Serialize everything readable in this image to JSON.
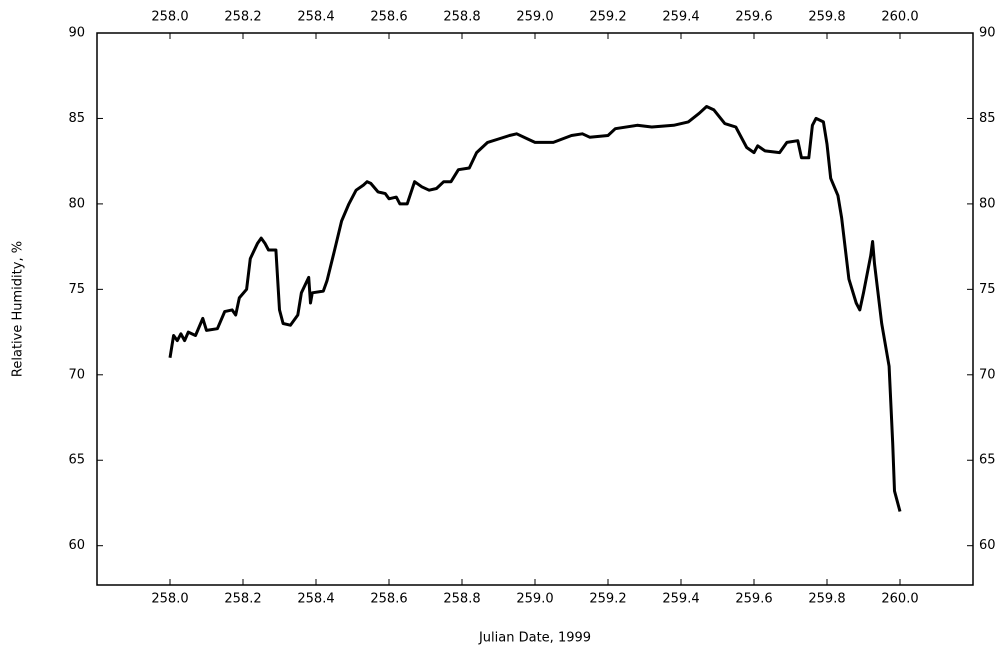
{
  "chart_data": {
    "type": "line",
    "x_label": "Julian Date, 1999",
    "y_label": "Relative Humidity, %",
    "color": "#000000",
    "xlim": [
      257.8,
      260.2
    ],
    "ylim": [
      57.7,
      90
    ],
    "xticks": [
      {
        "value": 258,
        "label": "258.0"
      },
      {
        "value": 258.2,
        "label": "258.2"
      },
      {
        "value": 258.4,
        "label": "258.4"
      },
      {
        "value": 258.6,
        "label": "258.6"
      },
      {
        "value": 258.8,
        "label": "258.8"
      },
      {
        "value": 259,
        "label": "259.0"
      },
      {
        "value": 259.2,
        "label": "259.2"
      },
      {
        "value": 259.4,
        "label": "259.4"
      },
      {
        "value": 259.6,
        "label": "259.6"
      },
      {
        "value": 259.8,
        "label": "259.8"
      },
      {
        "value": 260,
        "label": "260.0"
      }
    ],
    "yticks": [
      60,
      65,
      70,
      75,
      80,
      85,
      90
    ],
    "x": [
      258.0,
      258.01,
      258.02,
      258.03,
      258.04,
      258.05,
      258.07,
      258.09,
      258.1,
      258.13,
      258.15,
      258.17,
      258.18,
      258.19,
      258.21,
      258.22,
      258.24,
      258.25,
      258.26,
      258.27,
      258.29,
      258.3,
      258.31,
      258.33,
      258.35,
      258.36,
      258.38,
      258.385,
      258.39,
      258.42,
      258.43,
      258.45,
      258.47,
      258.49,
      258.51,
      258.53,
      258.54,
      258.55,
      258.57,
      258.59,
      258.6,
      258.62,
      258.63,
      258.65,
      258.67,
      258.69,
      258.71,
      258.73,
      258.75,
      258.77,
      258.79,
      258.82,
      258.84,
      258.87,
      258.9,
      258.93,
      258.95,
      258.98,
      259.0,
      259.05,
      259.1,
      259.13,
      259.15,
      259.2,
      259.22,
      259.28,
      259.32,
      259.38,
      259.42,
      259.45,
      259.47,
      259.49,
      259.52,
      259.55,
      259.58,
      259.6,
      259.61,
      259.63,
      259.67,
      259.69,
      259.72,
      259.73,
      259.75,
      259.76,
      259.77,
      259.79,
      259.8,
      259.81,
      259.83,
      259.84,
      259.86,
      259.88,
      259.89,
      259.9,
      259.92,
      259.925,
      259.93,
      259.95,
      259.97,
      259.98,
      259.985,
      260.0
    ],
    "values": [
      71.0,
      72.3,
      72.0,
      72.4,
      72.0,
      72.5,
      72.3,
      73.3,
      72.6,
      72.7,
      73.7,
      73.8,
      73.5,
      74.5,
      75.0,
      76.8,
      77.7,
      78.0,
      77.7,
      77.3,
      77.3,
      73.8,
      73.0,
      72.9,
      73.5,
      74.8,
      75.7,
      74.2,
      74.8,
      74.9,
      75.5,
      77.2,
      79.0,
      80.0,
      80.8,
      81.1,
      81.3,
      81.2,
      80.7,
      80.6,
      80.3,
      80.4,
      80.0,
      80.0,
      81.3,
      81.0,
      80.8,
      80.9,
      81.3,
      81.3,
      82.0,
      82.1,
      83.0,
      83.6,
      83.8,
      84.0,
      84.1,
      83.8,
      83.6,
      83.6,
      84.0,
      84.1,
      83.9,
      84.0,
      84.4,
      84.6,
      84.5,
      84.6,
      84.8,
      85.3,
      85.7,
      85.5,
      84.7,
      84.5,
      83.3,
      83.0,
      83.4,
      83.1,
      83.0,
      83.6,
      83.7,
      82.7,
      82.7,
      84.6,
      85.0,
      84.8,
      83.5,
      81.5,
      80.5,
      79.2,
      75.6,
      74.2,
      73.8,
      74.8,
      77.0,
      77.8,
      76.5,
      73.0,
      70.5,
      66.0,
      63.2,
      62.0
    ]
  }
}
